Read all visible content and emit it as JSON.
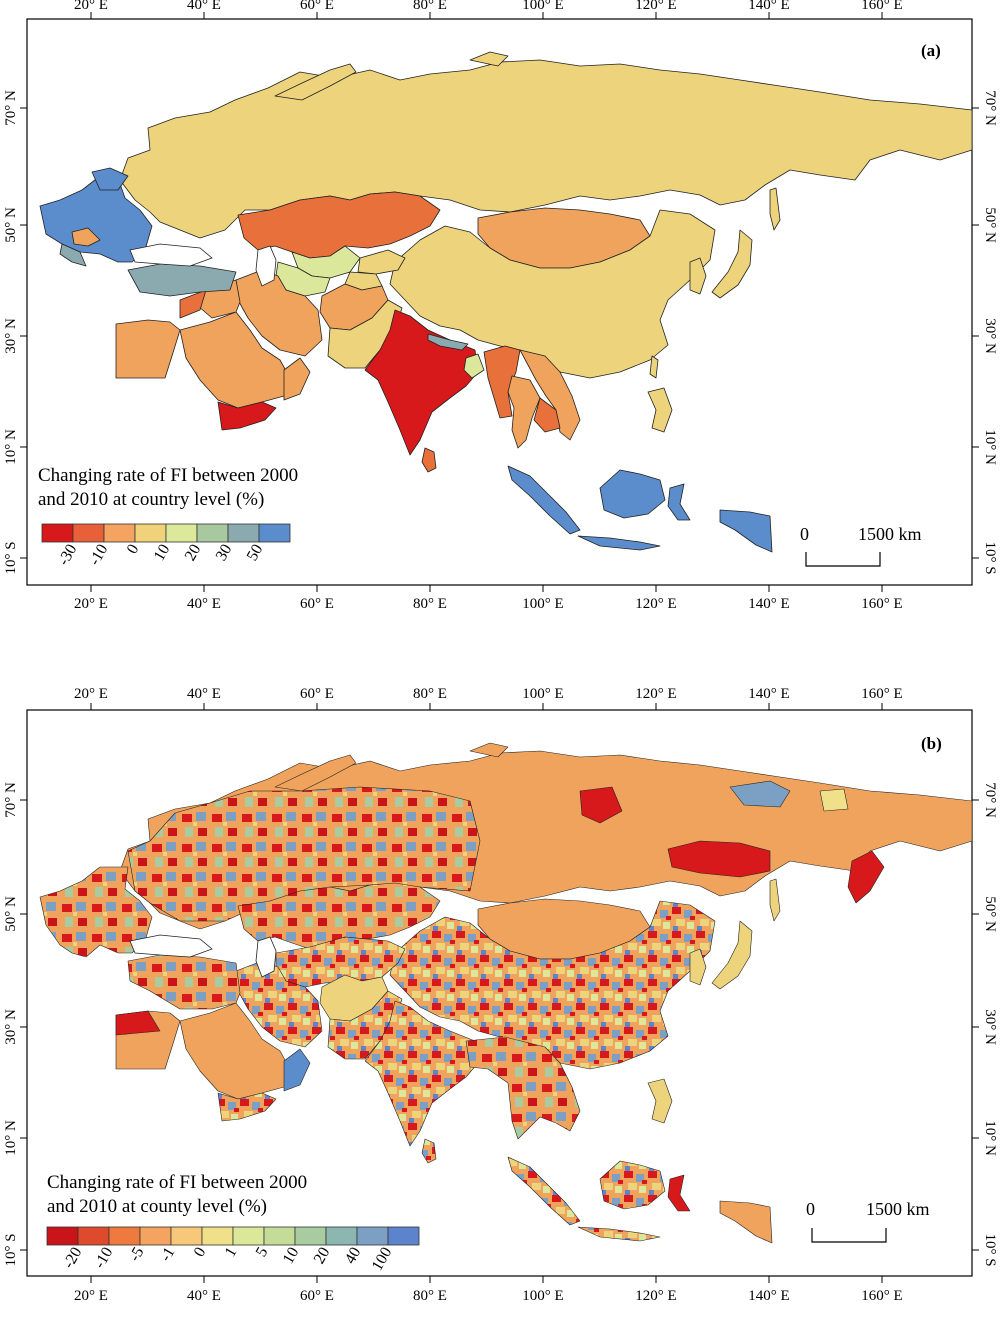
{
  "panels": [
    {
      "id": "a",
      "label": "(a)",
      "legend_title_line1": "Changing rate of FI between 2000",
      "legend_title_line2": "and 2010 at country level (%)",
      "legend_colors": [
        "#d7191c",
        "#e8603a",
        "#f4a460",
        "#f0d27a",
        "#dce89a",
        "#a8c8a0",
        "#8aaab0",
        "#5b8ccc"
      ],
      "legend_ticks": [
        "-30",
        "-10",
        "0",
        "10",
        "20",
        "30",
        "50"
      ],
      "scale_zero": "0",
      "scale_label": "1500 km"
    },
    {
      "id": "b",
      "label": "(b)",
      "legend_title_line1": "Changing rate of FI between 2000",
      "legend_title_line2": "and 2010 at county level (%)",
      "legend_colors": [
        "#c91519",
        "#e04a2c",
        "#ef7a3f",
        "#f4a460",
        "#f7c77a",
        "#f0e08a",
        "#dbe89a",
        "#c4dc98",
        "#a8cca0",
        "#8cb6b0",
        "#7ca0c4",
        "#5b84cc"
      ],
      "legend_ticks": [
        "-20",
        "-10",
        "-5",
        "-1",
        "0",
        "1",
        "5",
        "10",
        "20",
        "40",
        "100"
      ],
      "scale_zero": "0",
      "scale_label": "1500 km"
    }
  ],
  "axes": {
    "lon_labels": [
      "20° E",
      "40° E",
      "60° E",
      "80° E",
      "100° E",
      "120° E",
      "140° E",
      "160° E"
    ],
    "lat_labels": [
      "70° N",
      "50° N",
      "30° N",
      "10° N",
      "10° S"
    ]
  },
  "colors": {
    "red": "#d7191c",
    "orange": "#e8703a",
    "light_orange": "#f0a35c",
    "yellow": "#ecd37c",
    "light_green": "#dbe79a",
    "blue_green": "#8aaab0",
    "blue": "#5b8ccc"
  }
}
